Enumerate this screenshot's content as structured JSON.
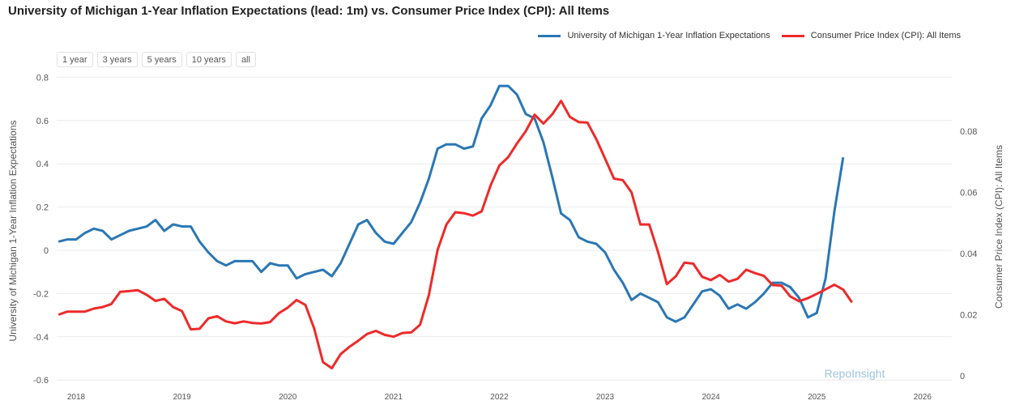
{
  "title": "University of Michigan 1-Year Inflation Expectations (lead: 1m) vs. Consumer Price Index (CPI): All Items",
  "range_buttons": [
    "1 year",
    "3 years",
    "5 years",
    "10 years",
    "all"
  ],
  "watermark": "RepoInsight",
  "colors": {
    "blue": "#2a77b4",
    "red": "#ee2a2a"
  },
  "chart_data": {
    "type": "line",
    "title": "University of Michigan 1-Year Inflation Expectations (lead: 1m) vs. Consumer Price Index (CPI): All Items",
    "ylabel_left": "University of Michigan 1-Year Inflation Expectations",
    "ylabel_right": "Consumer Price Index (CPI): All Items",
    "ylim_left": [
      -0.62,
      0.8
    ],
    "ylim_right": [
      0,
      0.098
    ],
    "yticks_left": [
      "0.8",
      "0.6",
      "0.4",
      "0.2",
      "0",
      "-0.2",
      "-0.4",
      "-0.6"
    ],
    "yticks_right": [
      "0.08",
      "0.06",
      "0.04",
      "0.02",
      "0"
    ],
    "xticks": [
      "2018",
      "2019",
      "2020",
      "2021",
      "2022",
      "2023",
      "2024",
      "2025",
      "2026"
    ],
    "xlim": [
      2017.82,
      2026.3
    ],
    "legend_position": "top-right",
    "series": [
      {
        "name": "University of Michigan 1-Year Inflation Expectations",
        "axis": "left",
        "color": "#2a77b4",
        "start": "2017-11",
        "values": [
          0.04,
          0.05,
          0.05,
          0.08,
          0.1,
          0.09,
          0.05,
          0.07,
          0.09,
          0.1,
          0.11,
          0.14,
          0.09,
          0.12,
          0.11,
          0.11,
          0.04,
          -0.01,
          -0.05,
          -0.07,
          -0.05,
          -0.05,
          -0.05,
          -0.1,
          -0.06,
          -0.07,
          -0.07,
          -0.13,
          -0.11,
          -0.1,
          -0.09,
          -0.12,
          -0.06,
          0.03,
          0.12,
          0.14,
          0.08,
          0.04,
          0.03,
          0.08,
          0.13,
          0.22,
          0.33,
          0.47,
          0.49,
          0.49,
          0.47,
          0.48,
          0.61,
          0.67,
          0.76,
          0.76,
          0.72,
          0.63,
          0.61,
          0.5,
          0.34,
          0.17,
          0.14,
          0.06,
          0.04,
          0.03,
          -0.01,
          -0.09,
          -0.15,
          -0.23,
          -0.2,
          -0.22,
          -0.24,
          -0.31,
          -0.33,
          -0.31,
          -0.25,
          -0.19,
          -0.18,
          -0.21,
          -0.27,
          -0.25,
          -0.27,
          -0.24,
          -0.2,
          -0.15,
          -0.15,
          -0.17,
          -0.22,
          -0.31,
          -0.29,
          -0.13,
          0.18,
          0.43
        ]
      },
      {
        "name": "Consumer Price Index (CPI): All Items",
        "axis": "right",
        "color": "#ee2a2a",
        "start": "2017-11",
        "values": [
          0.02,
          0.021,
          0.021,
          0.021,
          0.022,
          0.0225,
          0.0235,
          0.0275,
          0.0277,
          0.028,
          0.0265,
          0.0245,
          0.0252,
          0.0225,
          0.0212,
          0.0152,
          0.0154,
          0.0188,
          0.0195,
          0.0178,
          0.0172,
          0.0178,
          0.0173,
          0.0171,
          0.0176,
          0.0205,
          0.0223,
          0.0248,
          0.0232,
          0.0155,
          0.0045,
          0.0025,
          0.0071,
          0.0095,
          0.0115,
          0.0137,
          0.0147,
          0.0134,
          0.0128,
          0.014,
          0.0142,
          0.0167,
          0.0263,
          0.0412,
          0.0495,
          0.0535,
          0.0532,
          0.0524,
          0.0538,
          0.0622,
          0.0688,
          0.0715,
          0.076,
          0.08,
          0.0854,
          0.0825,
          0.0855,
          0.0899,
          0.0847,
          0.083,
          0.0828,
          0.0774,
          0.071,
          0.0645,
          0.064,
          0.06,
          0.0495,
          0.0495,
          0.0405,
          0.03,
          0.0325,
          0.037,
          0.0367,
          0.0324,
          0.0313,
          0.033,
          0.0308,
          0.0317,
          0.0347,
          0.0336,
          0.0327,
          0.0297,
          0.0295,
          0.026,
          0.0244,
          0.0254,
          0.0268,
          0.0283,
          0.0298,
          0.0282,
          0.024
        ]
      }
    ]
  }
}
